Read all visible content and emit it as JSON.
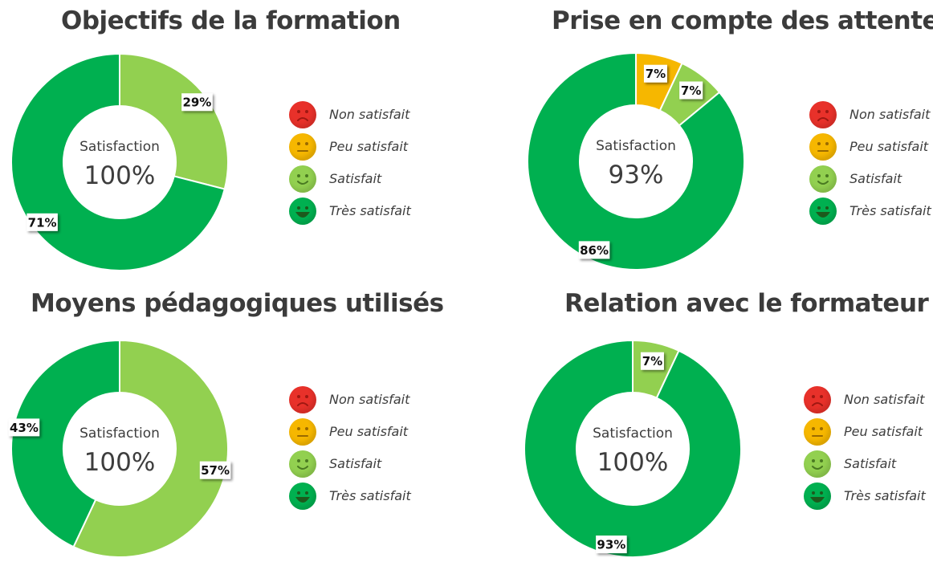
{
  "colors": {
    "non_satisfait": "#e8312a",
    "peu_satisfait": "#f6b700",
    "satisfait": "#92d050",
    "tres_satisfait": "#00b050"
  },
  "legend": [
    {
      "key": "non_satisfait",
      "label": "Non satisfait",
      "icon": "frown-face-icon"
    },
    {
      "key": "peu_satisfait",
      "label": "Peu satisfait",
      "icon": "neutral-face-icon"
    },
    {
      "key": "satisfait",
      "label": "Satisfait",
      "icon": "smile-face-icon"
    },
    {
      "key": "tres_satisfait",
      "label": "Très satisfait",
      "icon": "grin-face-icon"
    }
  ],
  "chart_data": [
    {
      "type": "pie",
      "title": "Objectifs de la formation",
      "center_label": "Satisfaction",
      "center_value": "100%",
      "slices": [
        {
          "category": "Satisfait",
          "key": "satisfait",
          "value": 29,
          "label": "29%"
        },
        {
          "category": "Très satisfait",
          "key": "tres_satisfait",
          "value": 71,
          "label": "71%"
        }
      ]
    },
    {
      "type": "pie",
      "title": "Prise en compte des attentes",
      "center_label": "Satisfaction",
      "center_value": "93%",
      "slices": [
        {
          "category": "Peu satisfait",
          "key": "peu_satisfait",
          "value": 7,
          "label": "7%"
        },
        {
          "category": "Satisfait",
          "key": "satisfait",
          "value": 7,
          "label": "7%"
        },
        {
          "category": "Très satisfait",
          "key": "tres_satisfait",
          "value": 86,
          "label": "86%"
        }
      ]
    },
    {
      "type": "pie",
      "title": "Moyens pédagogiques utilisés",
      "center_label": "Satisfaction",
      "center_value": "100%",
      "slices": [
        {
          "category": "Satisfait",
          "key": "satisfait",
          "value": 57,
          "label": "57%"
        },
        {
          "category": "Très satisfait",
          "key": "tres_satisfait",
          "value": 43,
          "label": "43%"
        }
      ]
    },
    {
      "type": "pie",
      "title": "Relation avec le formateur",
      "center_label": "Satisfaction",
      "center_value": "100%",
      "slices": [
        {
          "category": "Satisfait",
          "key": "satisfait",
          "value": 7,
          "label": "7%"
        },
        {
          "category": "Très satisfait",
          "key": "tres_satisfait",
          "value": 93,
          "label": "93%"
        }
      ]
    }
  ]
}
